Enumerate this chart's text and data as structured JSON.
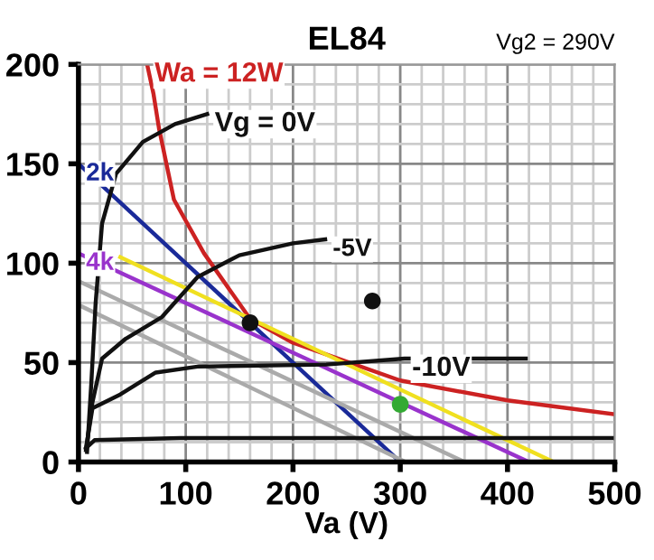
{
  "chart_data": {
    "type": "line",
    "title": "EL84",
    "subtitle": "Vg2 = 290V",
    "xlabel": "Va (V)",
    "xlim": [
      0,
      500
    ],
    "ylim": [
      0,
      200
    ],
    "xticks": [
      0,
      100,
      200,
      300,
      400,
      500
    ],
    "yticks": [
      0,
      50,
      100,
      150,
      200
    ],
    "grid": true,
    "legend": false,
    "marker": "none",
    "line_style": "solid",
    "series": [
      {
        "name": "Wa = 12W",
        "color": "#cc2222",
        "x": [
          64,
          70,
          75,
          89,
          117,
          160,
          200,
          300,
          400,
          500
        ],
        "values": [
          200,
          185,
          168,
          132,
          105,
          72,
          60,
          41,
          31,
          24
        ]
      },
      {
        "name": "2k",
        "color": "#1a2a99",
        "x": [
          0,
          300
        ],
        "values": [
          150,
          0
        ]
      },
      {
        "name": "4k",
        "color": "#9933cc",
        "x": [
          0,
          420
        ],
        "values": [
          105,
          0
        ]
      },
      {
        "color": "#f0e020",
        "x": [
          39,
          443
        ],
        "values": [
          103,
          0
        ]
      },
      {
        "color": "#aaaaaa",
        "x": [
          0,
          360
        ],
        "values": [
          91,
          0
        ]
      },
      {
        "color": "#aaaaaa",
        "x": [
          0,
          305
        ],
        "values": [
          79,
          0
        ]
      },
      {
        "name": "Vg = 0V",
        "color": "#111111",
        "x": [
          8,
          12,
          16,
          22,
          35,
          60,
          90,
          120
        ],
        "values": [
          5,
          40,
          80,
          120,
          145,
          161,
          170,
          175
        ]
      },
      {
        "name": "-5V",
        "color": "#111111",
        "x": [
          7,
          13,
          22,
          44,
          78,
          111,
          150,
          200,
          230
        ],
        "values": [
          6,
          30,
          52,
          62,
          73,
          93,
          104,
          110,
          112
        ]
      },
      {
        "name": "-10V",
        "color": "#111111",
        "x": [
          7,
          13,
          39,
          72,
          111,
          231,
          304,
          417
        ],
        "values": [
          7,
          27,
          34,
          45,
          48,
          49,
          52,
          52
        ]
      },
      {
        "color": "#111111",
        "x": [
          7,
          15,
          95,
          500
        ],
        "values": [
          7,
          11,
          12,
          12
        ]
      },
      {
        "type": "scatter",
        "marker": "circle",
        "colors": [
          "#111111",
          "#33aa33",
          "#111111"
        ],
        "x": [
          160,
          300,
          274
        ],
        "values": [
          70,
          29,
          81
        ]
      }
    ]
  }
}
